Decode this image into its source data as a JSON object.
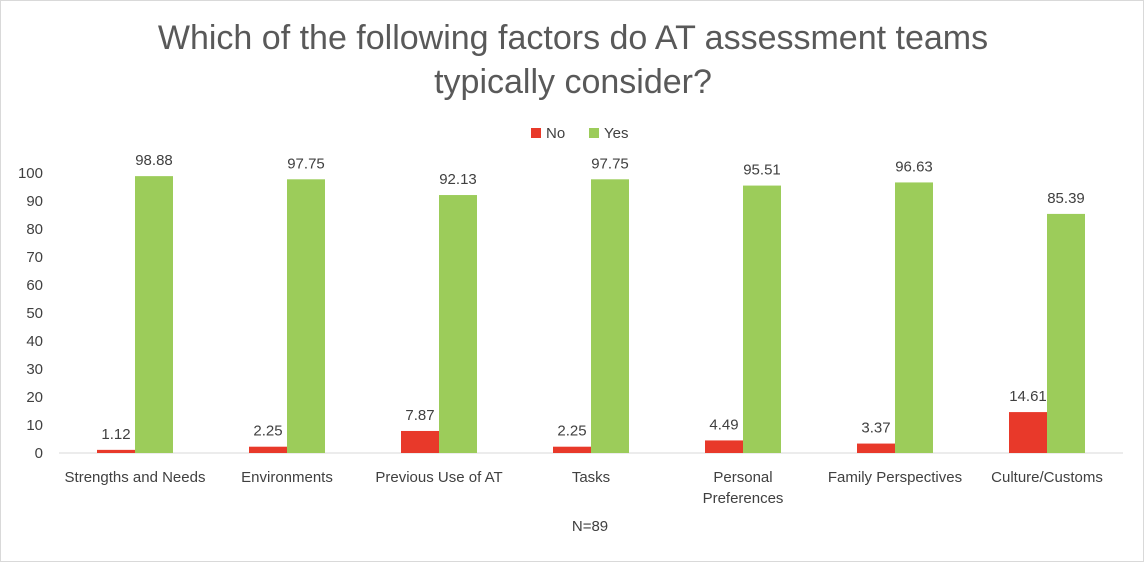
{
  "chart_data": {
    "type": "bar",
    "title_lines": [
      "Which of the following factors do AT assessment teams",
      "typically consider?"
    ],
    "categories": [
      [
        "Strengths and Needs"
      ],
      [
        "Environments"
      ],
      [
        "Previous Use of AT"
      ],
      [
        "Tasks"
      ],
      [
        "Personal",
        "Preferences"
      ],
      [
        "Family Perspectives"
      ],
      [
        "Culture/Customs"
      ]
    ],
    "series": [
      {
        "name": "No",
        "color": "#e8392a",
        "values": [
          1.12,
          2.25,
          7.87,
          2.25,
          4.49,
          3.37,
          14.61
        ]
      },
      {
        "name": "Yes",
        "color": "#9ccc5a",
        "values": [
          98.88,
          97.75,
          92.13,
          97.75,
          95.51,
          96.63,
          85.39
        ]
      }
    ],
    "ylim": [
      0,
      100
    ],
    "yticks": [
      0,
      10,
      20,
      30,
      40,
      50,
      60,
      70,
      80,
      90,
      100
    ],
    "legend_position": "top",
    "grid": false,
    "footnote": "N=89"
  }
}
